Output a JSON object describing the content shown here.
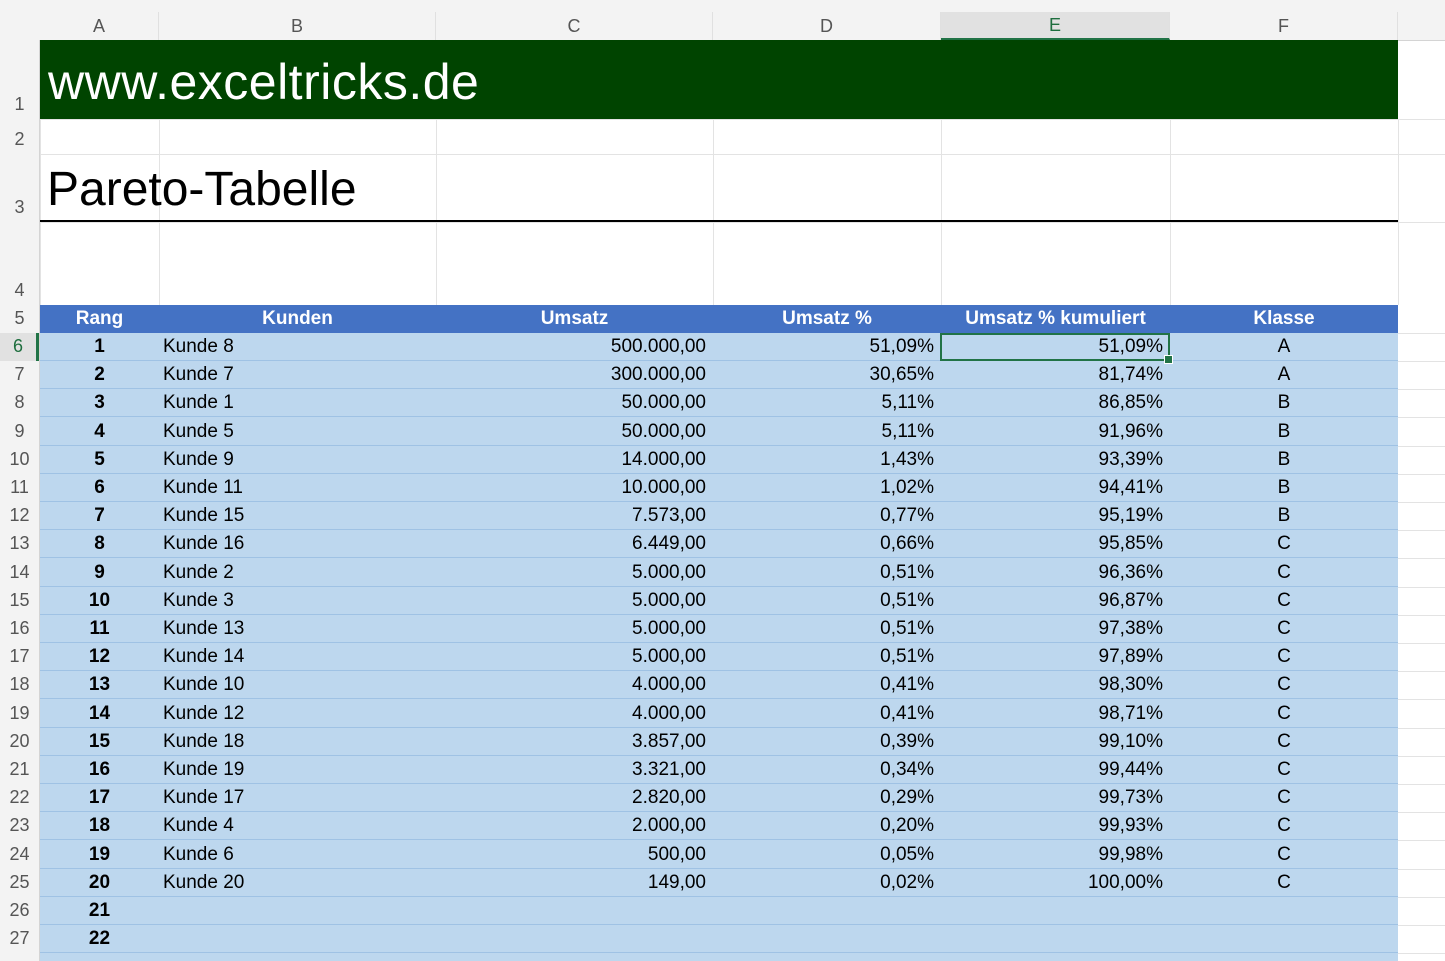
{
  "columns": [
    "A",
    "B",
    "C",
    "D",
    "E",
    "F"
  ],
  "active_column": "E",
  "row_numbers": [
    "1",
    "2",
    "3",
    "4",
    "5",
    "6",
    "7",
    "8",
    "9",
    "10",
    "11",
    "12",
    "13",
    "14",
    "15",
    "16",
    "17",
    "18",
    "19",
    "20",
    "21",
    "22",
    "23",
    "24",
    "25",
    "26",
    "27"
  ],
  "active_row": "6",
  "banner": {
    "text": "www.exceltricks.de",
    "color": "#004400"
  },
  "title": "Pareto-Tabelle",
  "table": {
    "header_color": "#4472c4",
    "body_color": "#bdd7ee",
    "headers": [
      "Rang",
      "Kunden",
      "Umsatz",
      "Umsatz %",
      "Umsatz % kumuliert",
      "Klasse"
    ],
    "rows": [
      [
        "1",
        "Kunde 8",
        "500.000,00",
        "51,09%",
        "51,09%",
        "A"
      ],
      [
        "2",
        "Kunde 7",
        "300.000,00",
        "30,65%",
        "81,74%",
        "A"
      ],
      [
        "3",
        "Kunde 1",
        "50.000,00",
        "5,11%",
        "86,85%",
        "B"
      ],
      [
        "4",
        "Kunde 5",
        "50.000,00",
        "5,11%",
        "91,96%",
        "B"
      ],
      [
        "5",
        "Kunde 9",
        "14.000,00",
        "1,43%",
        "93,39%",
        "B"
      ],
      [
        "6",
        "Kunde 11",
        "10.000,00",
        "1,02%",
        "94,41%",
        "B"
      ],
      [
        "7",
        "Kunde 15",
        "7.573,00",
        "0,77%",
        "95,19%",
        "B"
      ],
      [
        "8",
        "Kunde 16",
        "6.449,00",
        "0,66%",
        "95,85%",
        "C"
      ],
      [
        "9",
        "Kunde 2",
        "5.000,00",
        "0,51%",
        "96,36%",
        "C"
      ],
      [
        "10",
        "Kunde 3",
        "5.000,00",
        "0,51%",
        "96,87%",
        "C"
      ],
      [
        "11",
        "Kunde 13",
        "5.000,00",
        "0,51%",
        "97,38%",
        "C"
      ],
      [
        "12",
        "Kunde 14",
        "5.000,00",
        "0,51%",
        "97,89%",
        "C"
      ],
      [
        "13",
        "Kunde 10",
        "4.000,00",
        "0,41%",
        "98,30%",
        "C"
      ],
      [
        "14",
        "Kunde 12",
        "4.000,00",
        "0,41%",
        "98,71%",
        "C"
      ],
      [
        "15",
        "Kunde 18",
        "3.857,00",
        "0,39%",
        "99,10%",
        "C"
      ],
      [
        "16",
        "Kunde 19",
        "3.321,00",
        "0,34%",
        "99,44%",
        "C"
      ],
      [
        "17",
        "Kunde 17",
        "2.820,00",
        "0,29%",
        "99,73%",
        "C"
      ],
      [
        "18",
        "Kunde 4",
        "2.000,00",
        "0,20%",
        "99,93%",
        "C"
      ],
      [
        "19",
        "Kunde 6",
        "500,00",
        "0,05%",
        "99,98%",
        "C"
      ],
      [
        "20",
        "Kunde 20",
        "149,00",
        "0,02%",
        "100,00%",
        "C"
      ],
      [
        "21",
        "",
        "",
        "",
        "",
        ""
      ],
      [
        "22",
        "",
        "",
        "",
        "",
        ""
      ],
      [
        "",
        "",
        "",
        "",
        "",
        ""
      ]
    ]
  },
  "selected_cell": "E6"
}
